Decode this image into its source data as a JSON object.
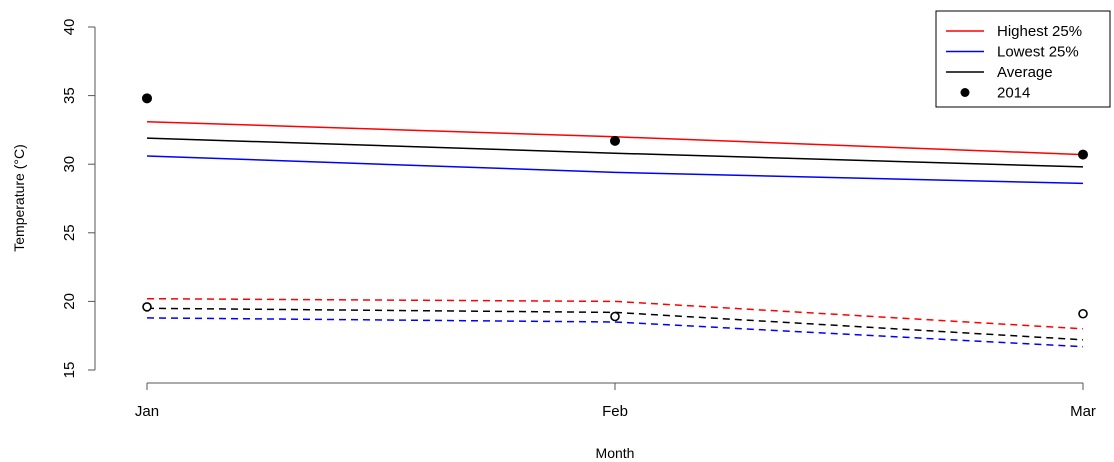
{
  "chart_data": {
    "type": "line",
    "xlabel": "Month",
    "ylabel": "Temperature (°C)",
    "categories": [
      "Jan",
      "Feb",
      "Mar"
    ],
    "ylim": [
      15,
      40
    ],
    "yticks": [
      15,
      20,
      25,
      30,
      35,
      40
    ],
    "grid": false,
    "legend_position": "top-right",
    "series": [
      {
        "name": "Highest 25%",
        "group": "max",
        "style": "solid",
        "color": "#ff0000",
        "values": [
          33.1,
          32.0,
          30.7
        ]
      },
      {
        "name": "Lowest 25%",
        "group": "max",
        "style": "solid",
        "color": "#0000ff",
        "values": [
          30.6,
          29.4,
          28.6
        ]
      },
      {
        "name": "Average",
        "group": "max",
        "style": "solid",
        "color": "#000000",
        "values": [
          31.9,
          30.8,
          29.8
        ]
      },
      {
        "group": "min",
        "style": "dashed",
        "color": "#ff0000",
        "values": [
          20.2,
          20.0,
          18.0
        ]
      },
      {
        "group": "min",
        "style": "dashed",
        "color": "#0000ff",
        "values": [
          18.8,
          18.5,
          16.7
        ]
      },
      {
        "group": "min",
        "style": "dashed",
        "color": "#000000",
        "values": [
          19.5,
          19.2,
          17.2
        ]
      }
    ],
    "points": [
      {
        "name": "2014",
        "marker": "filled-circle",
        "values": [
          34.8,
          31.7,
          30.7
        ]
      },
      {
        "marker": "open-circle",
        "values": [
          19.6,
          18.9,
          19.1
        ]
      }
    ],
    "legend": [
      {
        "label": "Highest 25%",
        "kind": "line",
        "color": "#ff0000"
      },
      {
        "label": "Lowest 25%",
        "kind": "line",
        "color": "#0000ff"
      },
      {
        "label": "Average",
        "kind": "line",
        "color": "#000000"
      },
      {
        "label": "2014",
        "kind": "point",
        "color": "#000000"
      }
    ]
  }
}
